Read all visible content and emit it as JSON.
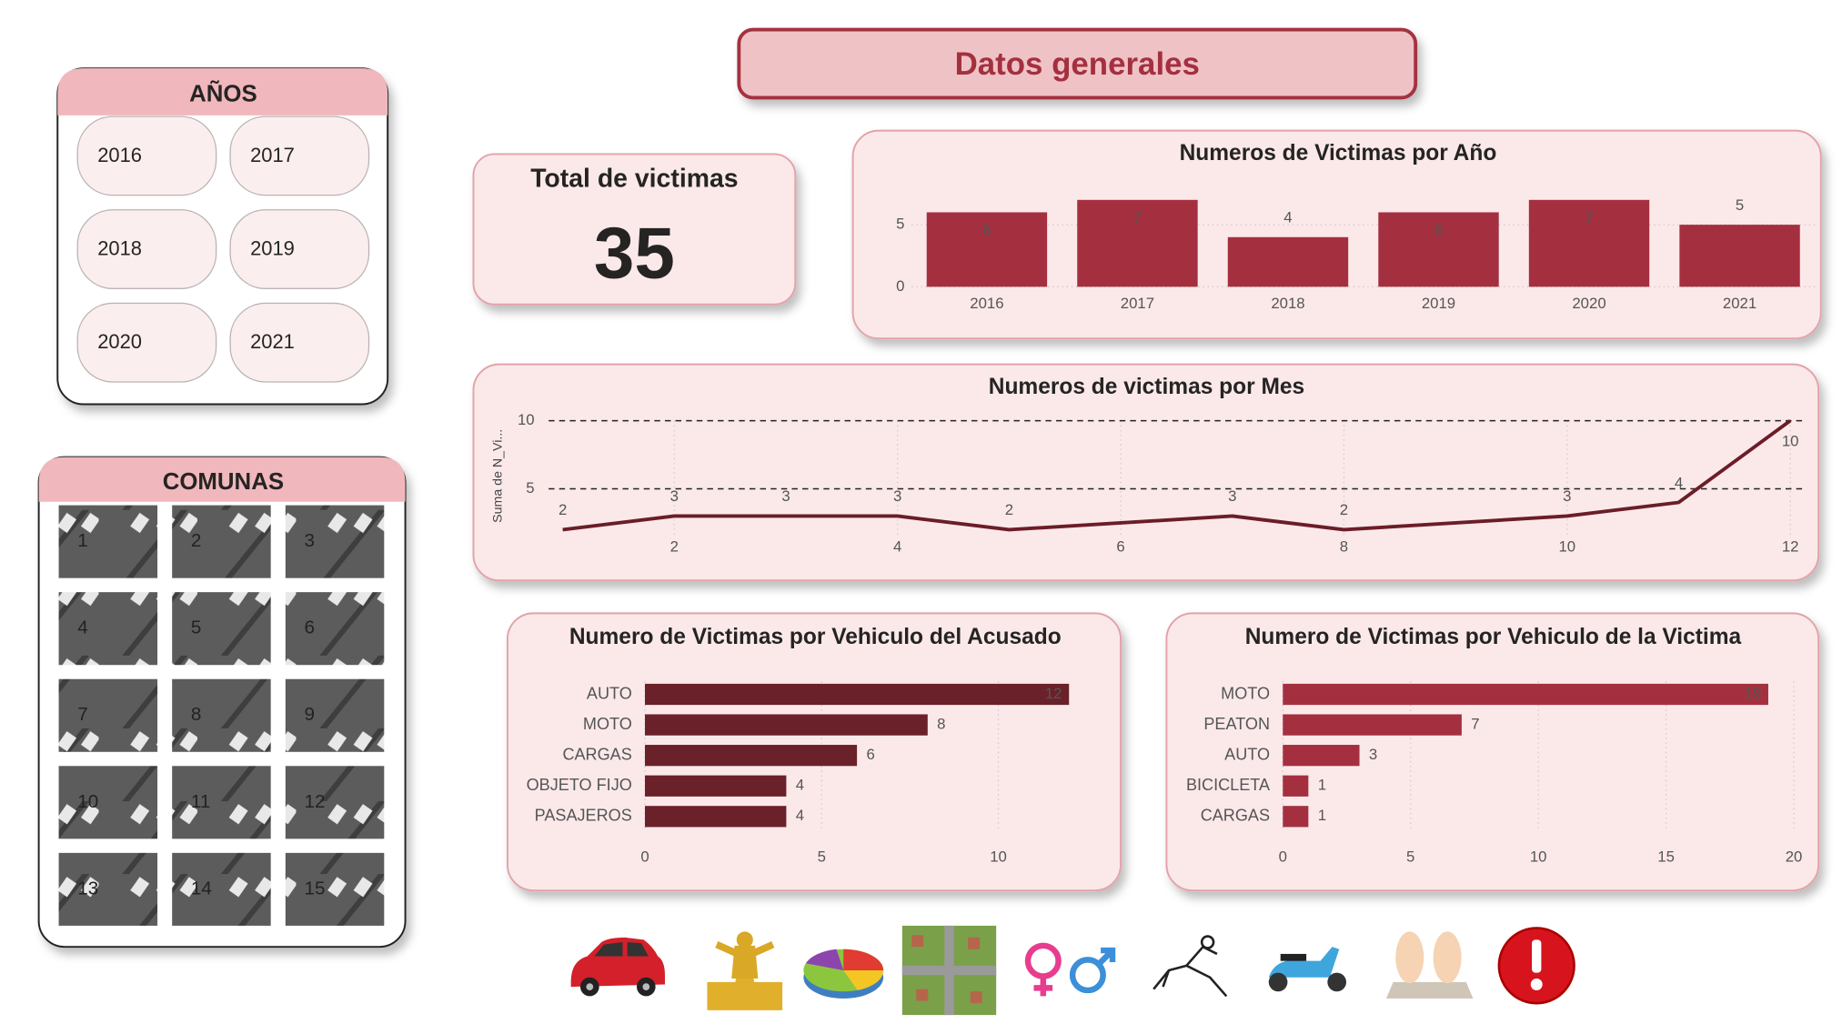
{
  "header": {
    "title": "Datos generales"
  },
  "years_slicer": {
    "title": "AÑOS",
    "items": [
      "2016",
      "2017",
      "2018",
      "2019",
      "2020",
      "2021"
    ]
  },
  "comunas_slicer": {
    "title": "COMUNAS",
    "items": [
      "1",
      "2",
      "3",
      "4",
      "5",
      "6",
      "7",
      "8",
      "9",
      "10",
      "11",
      "12",
      "13",
      "14",
      "15"
    ]
  },
  "kpi": {
    "label": "Total de victimas",
    "value": 35
  },
  "chart_data": [
    {
      "type": "bar",
      "orientation": "vertical",
      "title": "Numeros de Victimas por Año",
      "categories": [
        "2016",
        "2017",
        "2018",
        "2019",
        "2020",
        "2021"
      ],
      "values": [
        6,
        7,
        4,
        6,
        7,
        5
      ],
      "color": "#a4303f",
      "ylim": [
        0,
        7
      ],
      "yticks": [
        0,
        5
      ],
      "grid": true
    },
    {
      "type": "line",
      "title": "Numeros de victimas por Mes",
      "y_label": "Suma de N_Vi...",
      "x": [
        1,
        2,
        3,
        4,
        5,
        7,
        8,
        10,
        11,
        12
      ],
      "values": [
        2,
        3,
        3,
        3,
        2,
        3,
        2,
        3,
        4,
        10
      ],
      "color": "#6b1d28",
      "xlim": [
        1,
        12
      ],
      "xticks": [
        2,
        4,
        6,
        8,
        10,
        12
      ],
      "ylim": [
        0,
        10
      ],
      "yticks": [
        5,
        10
      ],
      "grid": true
    },
    {
      "type": "bar",
      "orientation": "horizontal",
      "title": "Numero de Victimas por Vehiculo del Acusado",
      "categories": [
        "AUTO",
        "MOTO",
        "CARGAS",
        "OBJETO FIJO",
        "PASAJEROS"
      ],
      "values": [
        12,
        8,
        6,
        4,
        4
      ],
      "color": "#6b2129",
      "xlim": [
        0,
        12
      ],
      "xticks": [
        0,
        5,
        10
      ],
      "grid": true
    },
    {
      "type": "bar",
      "orientation": "horizontal",
      "title": "Numero de Victimas por Vehiculo de la Victima",
      "categories": [
        "MOTO",
        "PEATON",
        "AUTO",
        "BICICLETA",
        "CARGAS"
      ],
      "values": [
        19,
        7,
        3,
        1,
        1
      ],
      "color": "#a4303f",
      "xlim": [
        0,
        20
      ],
      "xticks": [
        0,
        5,
        10,
        15,
        20
      ],
      "grid": true
    }
  ]
}
